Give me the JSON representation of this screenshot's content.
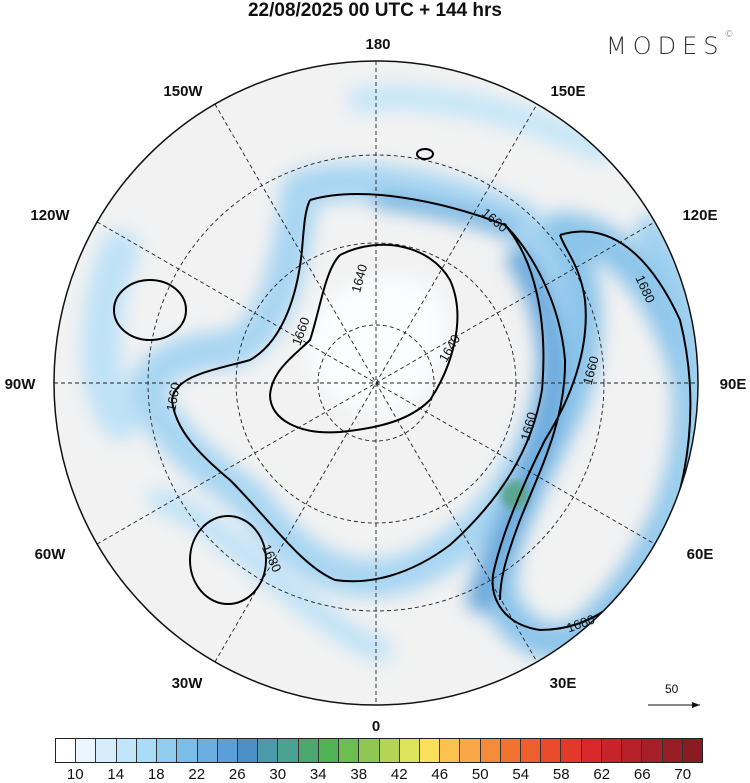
{
  "title": "22/08/2025  00 UTC  + 144 hrs",
  "logo": {
    "text": "MODES",
    "mark": "©"
  },
  "map": {
    "projection": "north polar stereographic",
    "longitude_labels": [
      "180",
      "150E",
      "120E",
      "90E",
      "60E",
      "30E",
      "0",
      "30W",
      "60W",
      "90W",
      "120W",
      "150W"
    ],
    "contour_labels": [
      "1660",
      "1640",
      "1640",
      "1660",
      "1660",
      "1660",
      "1660",
      "1680",
      "1680",
      "1680"
    ],
    "land_color": "#f2f2f2",
    "contour_color": "#000000"
  },
  "vector_reference": {
    "value": "50",
    "icon": "arrow-right-icon"
  },
  "colorbar": {
    "labels": [
      "10",
      "14",
      "18",
      "22",
      "26",
      "30",
      "34",
      "38",
      "42",
      "46",
      "50",
      "54",
      "58",
      "62",
      "66",
      "70"
    ],
    "colors": [
      "#ffffff",
      "#eaf6fd",
      "#d6eefb",
      "#c1e6f9",
      "#a9dcf6",
      "#92cdf0",
      "#7cbde8",
      "#6aafe0",
      "#5a9fd8",
      "#4b8fc6",
      "#4a9aa8",
      "#4aa290",
      "#4aa870",
      "#4fb356",
      "#6cbf4e",
      "#8fc750",
      "#b5d455",
      "#dde35a",
      "#f9e05b",
      "#fbc24f",
      "#f9a646",
      "#f58c3b",
      "#f2722f",
      "#ef5e2d",
      "#e94b2b",
      "#e3392b",
      "#d8282b",
      "#c7232a",
      "#b62129",
      "#a41f27",
      "#971d25",
      "#8b1b22"
    ]
  }
}
